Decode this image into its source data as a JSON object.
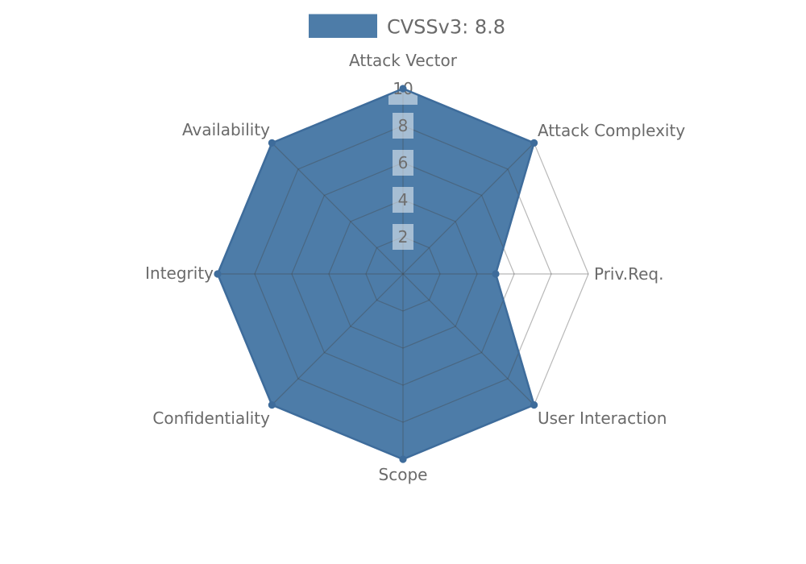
{
  "chart_data": {
    "type": "radar",
    "title": "",
    "legend": {
      "label": "CVSSv3: 8.8",
      "position": "top-center"
    },
    "axes": [
      "Attack Vector",
      "Attack Complexity",
      "Priv.Req.",
      "User Interaction",
      "Scope",
      "Confidentiality",
      "Integrity",
      "Availability"
    ],
    "series": [
      {
        "name": "CVSSv3: 8.8",
        "values": [
          10,
          10,
          5,
          10,
          10,
          10,
          10,
          10
        ]
      }
    ],
    "radial_ticks": [
      "2",
      "4",
      "6",
      "8",
      "10"
    ],
    "radial_tick_values": [
      2,
      4,
      6,
      8,
      10
    ],
    "rlim": [
      0,
      10
    ],
    "grid": true,
    "grid_shape": "polygon"
  },
  "colors": {
    "series_fill": "#4d7ca8",
    "series_edge": "#3e6c9b",
    "marker": "#3e6c9b",
    "grid_line": "#444444",
    "axis_label": "#6a6a6a",
    "tick_label": "#6e6e6e",
    "tick_box": "#ffffff",
    "background": "#ffffff"
  }
}
